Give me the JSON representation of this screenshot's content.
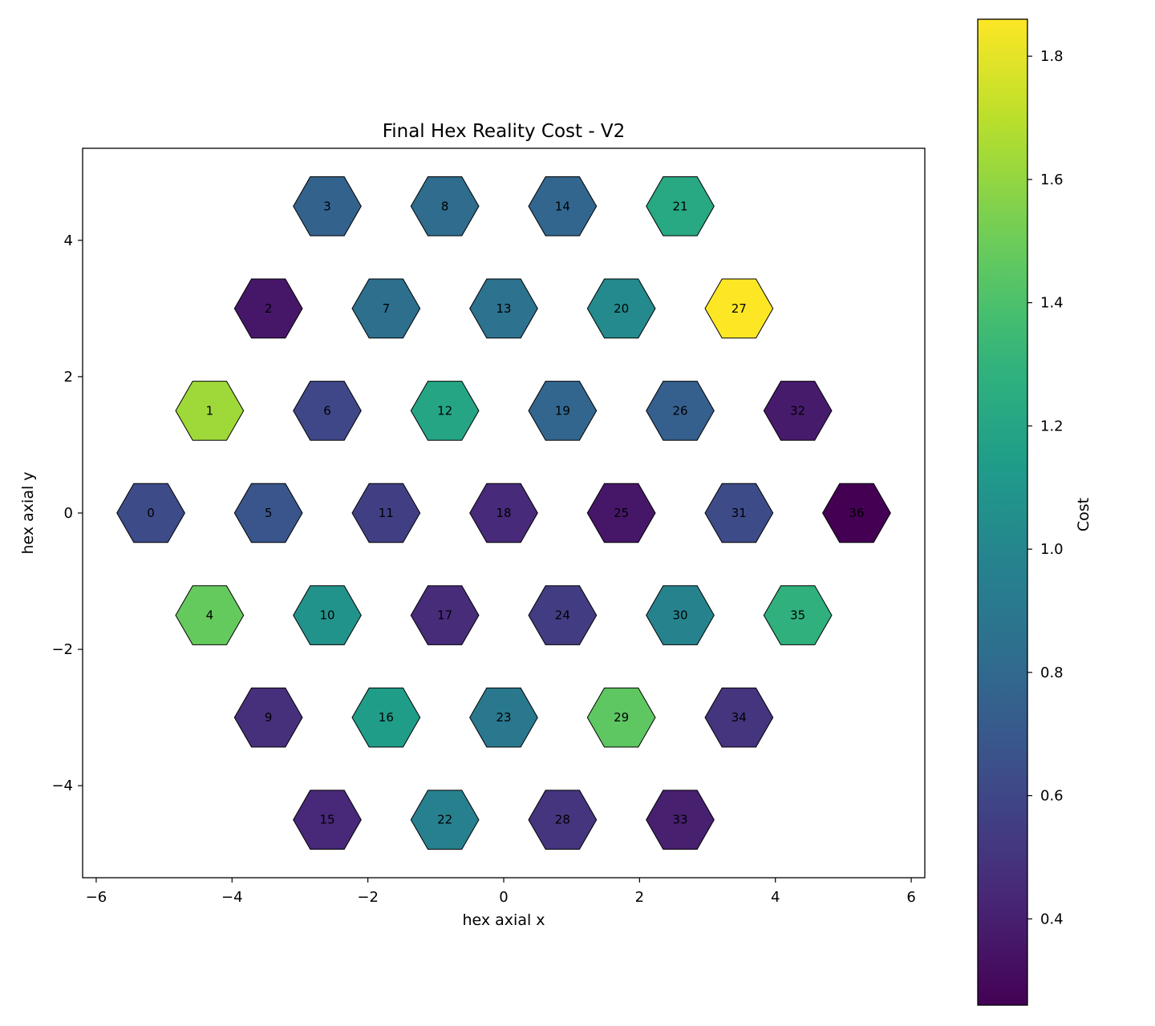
{
  "chart_data": {
    "type": "heatmap",
    "title": "Final Hex Reality Cost - V2",
    "xlabel": "hex axial x",
    "ylabel": "hex axial y",
    "xlim": [
      -6.2,
      6.2
    ],
    "ylim": [
      -5.35,
      5.35
    ],
    "xticks": [
      -6,
      -4,
      -2,
      0,
      2,
      4,
      6
    ],
    "yticks": [
      -4,
      -2,
      0,
      2,
      4
    ],
    "colorbar": {
      "label": "Cost",
      "range": [
        0.26,
        1.86
      ],
      "ticks": [
        0.4,
        0.6,
        0.8,
        1.0,
        1.2,
        1.4,
        1.6,
        1.8
      ],
      "colormap": "viridis"
    },
    "hexagons": [
      {
        "id": 0,
        "x": -5.196,
        "y": 0.0,
        "cost": 0.62
      },
      {
        "id": 1,
        "x": -4.33,
        "y": 1.5,
        "cost": 1.63
      },
      {
        "id": 2,
        "x": -3.464,
        "y": 3.0,
        "cost": 0.36
      },
      {
        "id": 3,
        "x": -2.598,
        "y": 4.5,
        "cost": 0.76
      },
      {
        "id": 4,
        "x": -4.33,
        "y": -1.5,
        "cost": 1.48
      },
      {
        "id": 5,
        "x": -3.464,
        "y": 0.0,
        "cost": 0.68
      },
      {
        "id": 6,
        "x": -2.598,
        "y": 1.5,
        "cost": 0.6
      },
      {
        "id": 7,
        "x": -1.732,
        "y": 3.0,
        "cost": 0.84
      },
      {
        "id": 8,
        "x": -0.866,
        "y": 4.5,
        "cost": 0.82
      },
      {
        "id": 9,
        "x": -3.464,
        "y": -3.0,
        "cost": 0.48
      },
      {
        "id": 10,
        "x": -2.598,
        "y": -1.5,
        "cost": 1.08
      },
      {
        "id": 11,
        "x": -1.732,
        "y": 0.0,
        "cost": 0.56
      },
      {
        "id": 12,
        "x": -0.866,
        "y": 1.5,
        "cost": 1.2
      },
      {
        "id": 13,
        "x": 0.0,
        "y": 3.0,
        "cost": 0.86
      },
      {
        "id": 14,
        "x": 0.866,
        "y": 4.5,
        "cost": 0.78
      },
      {
        "id": 15,
        "x": -2.598,
        "y": -4.5,
        "cost": 0.44
      },
      {
        "id": 16,
        "x": -1.732,
        "y": -3.0,
        "cost": 1.14
      },
      {
        "id": 17,
        "x": -0.866,
        "y": -1.5,
        "cost": 0.46
      },
      {
        "id": 18,
        "x": 0.0,
        "y": 0.0,
        "cost": 0.45
      },
      {
        "id": 19,
        "x": 0.866,
        "y": 1.5,
        "cost": 0.78
      },
      {
        "id": 20,
        "x": 1.732,
        "y": 3.0,
        "cost": 1.02
      },
      {
        "id": 21,
        "x": 2.598,
        "y": 4.5,
        "cost": 1.22
      },
      {
        "id": 22,
        "x": -0.866,
        "y": -4.5,
        "cost": 0.96
      },
      {
        "id": 23,
        "x": 0.0,
        "y": -3.0,
        "cost": 0.9
      },
      {
        "id": 24,
        "x": 0.866,
        "y": -1.5,
        "cost": 0.54
      },
      {
        "id": 25,
        "x": 1.732,
        "y": 0.0,
        "cost": 0.36
      },
      {
        "id": 26,
        "x": 2.598,
        "y": 1.5,
        "cost": 0.74
      },
      {
        "id": 27,
        "x": 3.464,
        "y": 3.0,
        "cost": 1.86
      },
      {
        "id": 28,
        "x": 0.866,
        "y": -4.5,
        "cost": 0.5
      },
      {
        "id": 29,
        "x": 1.732,
        "y": -3.0,
        "cost": 1.46
      },
      {
        "id": 30,
        "x": 2.598,
        "y": -1.5,
        "cost": 0.98
      },
      {
        "id": 31,
        "x": 3.464,
        "y": 0.0,
        "cost": 0.62
      },
      {
        "id": 32,
        "x": 4.33,
        "y": 1.5,
        "cost": 0.38
      },
      {
        "id": 33,
        "x": 2.598,
        "y": -4.5,
        "cost": 0.4
      },
      {
        "id": 34,
        "x": 3.464,
        "y": -3.0,
        "cost": 0.5
      },
      {
        "id": 35,
        "x": 4.33,
        "y": -1.5,
        "cost": 1.28
      },
      {
        "id": 36,
        "x": 5.196,
        "y": 0.0,
        "cost": 0.26
      }
    ],
    "grid": false
  }
}
